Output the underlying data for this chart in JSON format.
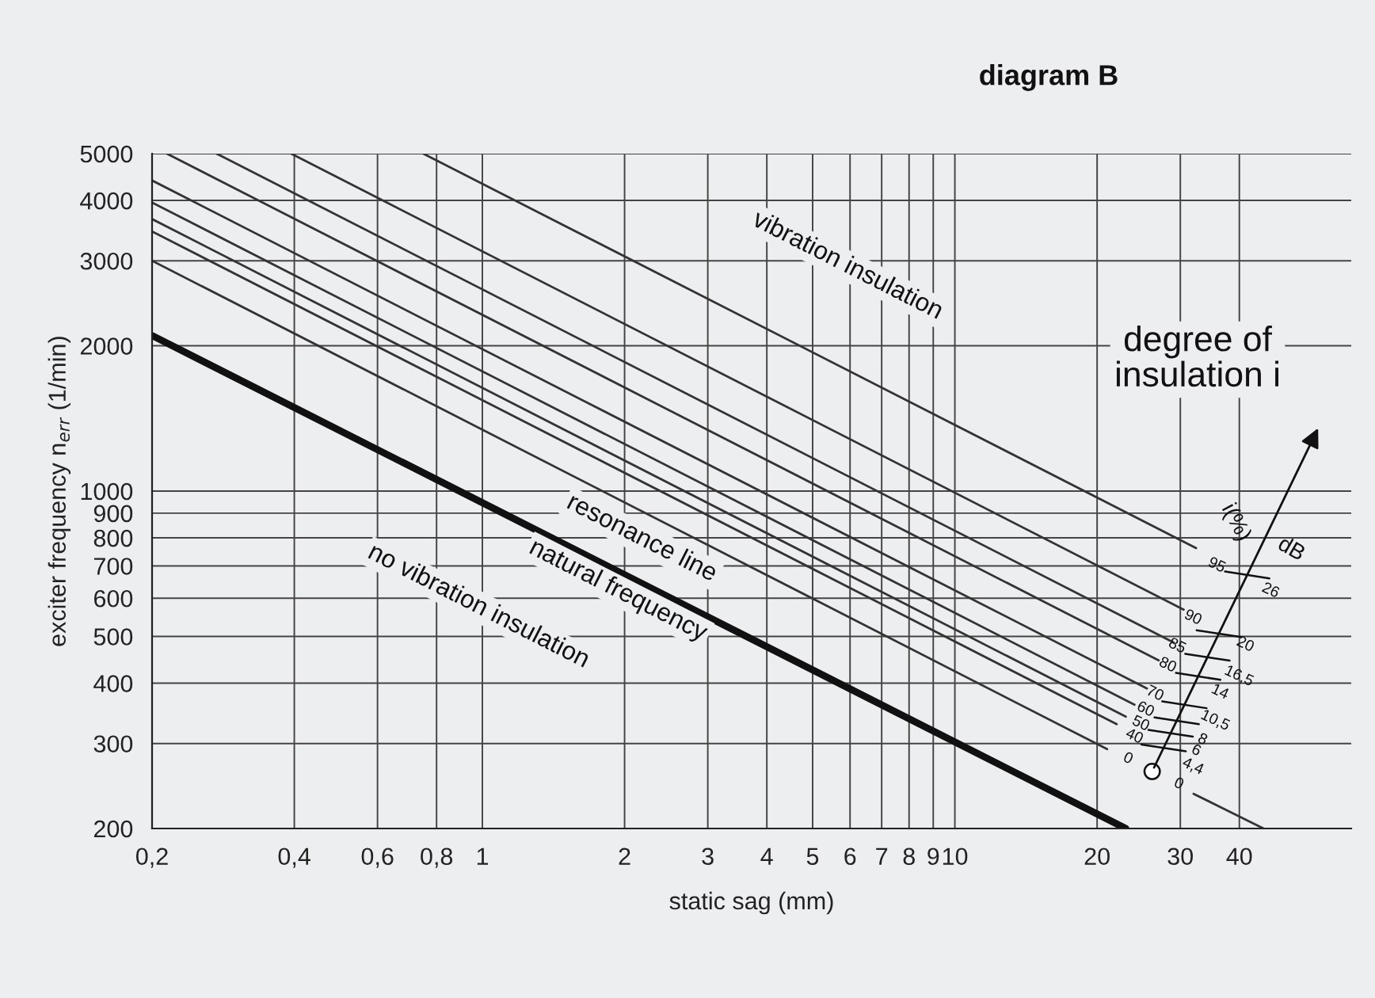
{
  "chart_data": {
    "type": "line",
    "title": "diagram B",
    "xlabel": "static sag (mm)",
    "ylabel": "exciter frequency n$_{err}$ (1/min)",
    "log": "xy",
    "grid": true,
    "xlim": [
      0.2,
      69
    ],
    "ylim": [
      200,
      5000
    ],
    "xticks": [
      {
        "value": 0.2,
        "label": "0,2"
      },
      {
        "value": 0.4,
        "label": "0,4"
      },
      {
        "value": 0.6,
        "label": "0,6"
      },
      {
        "value": 0.8,
        "label": "0,8"
      },
      1,
      2,
      3,
      4,
      5,
      6,
      7,
      8,
      9,
      10,
      20,
      30,
      40
    ],
    "yticks": [
      200,
      300,
      400,
      500,
      600,
      700,
      800,
      900,
      1000,
      2000,
      3000,
      4000,
      5000
    ],
    "series": [
      {
        "color": "#111111",
        "x": [
          0.2,
          23
        ],
        "values": [
          2100,
          200
        ]
      },
      {
        "color": "#333333",
        "x": [
          0.2,
          21,
          26,
          32,
          45
        ],
        "values": [
          3000,
          292,
          null,
          236,
          200
        ]
      },
      {
        "color": "#333333",
        "x": [
          0.2,
          22
        ],
        "values": [
          3450,
          329
        ]
      },
      {
        "color": "#333333",
        "x": [
          0.2,
          23
        ],
        "values": [
          3660,
          341
        ]
      },
      {
        "color": "#333333",
        "x": [
          0.2,
          24
        ],
        "values": [
          3960,
          361
        ]
      },
      {
        "color": "#333333",
        "x": [
          0.2,
          25.5
        ],
        "values": [
          4400,
          390
        ]
      },
      {
        "color": "#333333",
        "x": [
          0.215,
          27
        ],
        "values": [
          5000,
          446
        ]
      },
      {
        "color": "#333333",
        "x": [
          0.274,
          29
        ],
        "values": [
          5000,
          486
        ]
      },
      {
        "color": "#333333",
        "x": [
          0.394,
          30.5
        ],
        "values": [
          5000,
          568
        ]
      },
      {
        "color": "#333333",
        "x": [
          0.75,
          32.4
        ],
        "values": [
          5000,
          762
        ]
      }
    ],
    "annotations": [
      "vibration insulation",
      "resonance line",
      "natural frequency",
      "no vibration insulation",
      "degree of\ninsulation i",
      "i(%)",
      "dB",
      "95",
      "90",
      "85",
      "80",
      "70",
      "60",
      "50",
      "40",
      "0",
      "26",
      "20",
      "16,5",
      "14",
      "10,5",
      "8",
      "6",
      "4,4",
      "0"
    ]
  }
}
